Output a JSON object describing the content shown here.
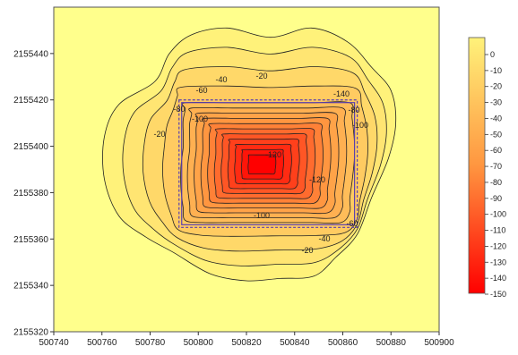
{
  "chart_data": {
    "type": "contour",
    "title": "",
    "xlabel": "",
    "ylabel": "",
    "xlim": [
      500740,
      500900
    ],
    "ylim": [
      2155320,
      2155460
    ],
    "x_ticks": [
      "500740",
      "500760",
      "500780",
      "500800",
      "500820",
      "500840",
      "500860",
      "500880",
      "500900"
    ],
    "y_ticks": [
      "2155320",
      "2155340",
      "2155360",
      "2155380",
      "2155400",
      "2155420",
      "2155440"
    ],
    "colorbar": {
      "levels": [
        "0",
        "-10",
        "-20",
        "-30",
        "-40",
        "-50",
        "-60",
        "-70",
        "-80",
        "-90",
        "-100",
        "-110",
        "-120",
        "-130",
        "-140",
        "-150"
      ],
      "color_top": "#fff27a",
      "color_bottom": "#ff0000"
    },
    "contour_labels": [
      "-20",
      "-40",
      "-60",
      "-80",
      "-100",
      "-120",
      "-140",
      "-100",
      "-120",
      "-40",
      "-60",
      "-20",
      "-20",
      "-100",
      "-80"
    ],
    "center": {
      "x": 500826,
      "y": 2155392,
      "min_value": -150
    },
    "pit_rectangle": {
      "x_min": 500792,
      "x_max": 500866,
      "y_min": 2155365,
      "y_max": 2155420
    },
    "grid": false
  },
  "colors": {
    "background": "#ffff8c",
    "contour_line": "#222222",
    "pit_outline": "#5a3fb0"
  }
}
